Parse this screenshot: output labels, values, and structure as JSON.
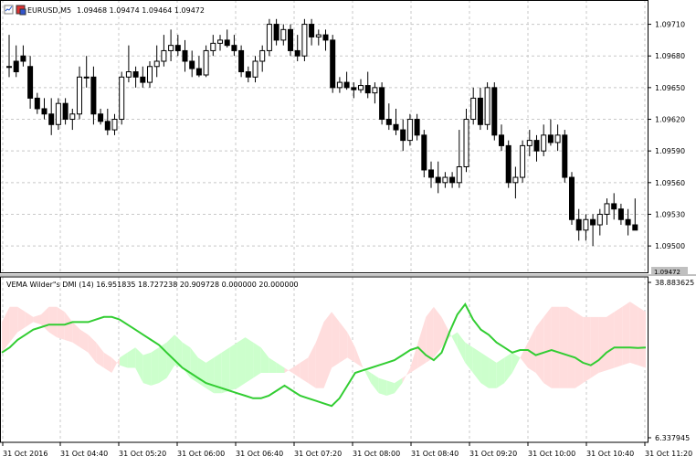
{
  "window": {
    "symbol_label": "EURUSD,M5",
    "ohlc_label": "1.09468 1.09474 1.09464 1.09472",
    "indicator_label": "VEMA Wilder\"s DMI (14) 16.951835 18.727238 20.909728 0.000000 20.000000",
    "current_price": "1.09472"
  },
  "colors": {
    "background": "#ffffff",
    "grid": "#c8c8c8",
    "axis": "#000000",
    "bull_body": "#ffffff",
    "bear_body": "#000000",
    "candle_outline": "#000000",
    "vema_line": "#32cd32",
    "cloud_green": "#ccffcc",
    "cloud_red": "#ffdddd"
  },
  "chart_data": [
    {
      "type": "candlestick",
      "name": "EURUSD,M5",
      "title": "EURUSD,M5",
      "y_ticks": [
        "1.09710",
        "1.09680",
        "1.09650",
        "1.09620",
        "1.09590",
        "1.09560",
        "1.09530",
        "1.09500"
      ],
      "ylim": [
        1.09475,
        1.09733
      ],
      "x_ticks": [
        "31 Oct 2016",
        "31 Oct 04:40",
        "31 Oct 05:20",
        "31 Oct 06:00",
        "31 Oct 06:40",
        "31 Oct 07:20",
        "31 Oct 08:00",
        "31 Oct 08:40",
        "31 Oct 09:20",
        "31 Oct 10:00",
        "31 Oct 10:40",
        "31 Oct 11:20"
      ],
      "grid": true,
      "ohlc": [
        [
          1.0967,
          1.097,
          1.0966,
          1.0967
        ],
        [
          1.09675,
          1.0969,
          1.0966,
          1.09665
        ],
        [
          1.0968,
          1.0969,
          1.0967,
          1.09675
        ],
        [
          1.0967,
          1.0968,
          1.0963,
          1.0964
        ],
        [
          1.0964,
          1.09645,
          1.09625,
          1.0963
        ],
        [
          1.0963,
          1.0964,
          1.0962,
          1.09625
        ],
        [
          1.09625,
          1.0964,
          1.09605,
          1.09615
        ],
        [
          1.09615,
          1.0964,
          1.0961,
          1.09635
        ],
        [
          1.09635,
          1.0964,
          1.09615,
          1.0962
        ],
        [
          1.0962,
          1.0963,
          1.0961,
          1.09625
        ],
        [
          1.09625,
          1.0967,
          1.0962,
          1.0966
        ],
        [
          1.0966,
          1.0968,
          1.0965,
          1.0966
        ],
        [
          1.0966,
          1.0967,
          1.09615,
          1.09625
        ],
        [
          1.09625,
          1.0963,
          1.09615,
          1.09618
        ],
        [
          1.09618,
          1.0963,
          1.09605,
          1.0961
        ],
        [
          1.0961,
          1.09625,
          1.09605,
          1.0962
        ],
        [
          1.0962,
          1.09665,
          1.09615,
          1.0966
        ],
        [
          1.0966,
          1.0969,
          1.09655,
          1.09665
        ],
        [
          1.09665,
          1.0967,
          1.0965,
          1.0966
        ],
        [
          1.0966,
          1.0967,
          1.0965,
          1.09655
        ],
        [
          1.09655,
          1.09675,
          1.0965,
          1.0967
        ],
        [
          1.0967,
          1.0969,
          1.0966,
          1.09675
        ],
        [
          1.09675,
          1.097,
          1.0967,
          1.09685
        ],
        [
          1.09685,
          1.09705,
          1.09675,
          1.0969
        ],
        [
          1.0969,
          1.097,
          1.0968,
          1.09685
        ],
        [
          1.09685,
          1.09695,
          1.09665,
          1.09675
        ],
        [
          1.09675,
          1.09685,
          1.0966,
          1.09668
        ],
        [
          1.09668,
          1.0968,
          1.0966,
          1.09662
        ],
        [
          1.09662,
          1.0969,
          1.0966,
          1.09685
        ],
        [
          1.09685,
          1.097,
          1.0968,
          1.09692
        ],
        [
          1.09692,
          1.097,
          1.09685,
          1.09695
        ],
        [
          1.09695,
          1.09705,
          1.09688,
          1.0969
        ],
        [
          1.0969,
          1.097,
          1.0968,
          1.09685
        ],
        [
          1.09685,
          1.0969,
          1.0966,
          1.09665
        ],
        [
          1.09665,
          1.0967,
          1.09655,
          1.0966
        ],
        [
          1.0966,
          1.0968,
          1.09655,
          1.09675
        ],
        [
          1.09675,
          1.0969,
          1.09665,
          1.09685
        ],
        [
          1.09685,
          1.09715,
          1.0968,
          1.0971
        ],
        [
          1.0971,
          1.09715,
          1.0969,
          1.09695
        ],
        [
          1.09695,
          1.0971,
          1.0969,
          1.09705
        ],
        [
          1.09705,
          1.0971,
          1.0968,
          1.09685
        ],
        [
          1.09685,
          1.097,
          1.09675,
          1.0968
        ],
        [
          1.0968,
          1.09715,
          1.09675,
          1.0971
        ],
        [
          1.0971,
          1.09715,
          1.0969,
          1.09698
        ],
        [
          1.09698,
          1.09705,
          1.0969,
          1.097
        ],
        [
          1.097,
          1.09705,
          1.09685,
          1.09695
        ],
        [
          1.09695,
          1.097,
          1.09645,
          1.0965
        ],
        [
          1.0965,
          1.0966,
          1.09645,
          1.09655
        ],
        [
          1.09655,
          1.09665,
          1.09648,
          1.0965
        ],
        [
          1.0965,
          1.09655,
          1.0964,
          1.09648
        ],
        [
          1.09648,
          1.09658,
          1.09645,
          1.09652
        ],
        [
          1.09652,
          1.09665,
          1.0964,
          1.09645
        ],
        [
          1.09645,
          1.09655,
          1.09635,
          1.0965
        ],
        [
          1.0965,
          1.09655,
          1.09615,
          1.0962
        ],
        [
          1.0962,
          1.09635,
          1.0961,
          1.09615
        ],
        [
          1.09615,
          1.0963,
          1.09605,
          1.0961
        ],
        [
          1.0961,
          1.0962,
          1.0959,
          1.096
        ],
        [
          1.096,
          1.09625,
          1.09595,
          1.0962
        ],
        [
          1.0962,
          1.09625,
          1.096,
          1.09605
        ],
        [
          1.09605,
          1.0961,
          1.09565,
          1.09572
        ],
        [
          1.09572,
          1.0958,
          1.09555,
          1.09565
        ],
        [
          1.09565,
          1.0958,
          1.0955,
          1.0956
        ],
        [
          1.0956,
          1.0957,
          1.09555,
          1.09565
        ],
        [
          1.09565,
          1.0957,
          1.09555,
          1.0956
        ],
        [
          1.0956,
          1.0961,
          1.09555,
          1.09575
        ],
        [
          1.09575,
          1.0963,
          1.0957,
          1.0962
        ],
        [
          1.0962,
          1.0965,
          1.09615,
          1.0964
        ],
        [
          1.0964,
          1.0965,
          1.0961,
          1.09615
        ],
        [
          1.09615,
          1.09655,
          1.0961,
          1.0965
        ],
        [
          1.0965,
          1.09655,
          1.096,
          1.09605
        ],
        [
          1.09605,
          1.09615,
          1.0959,
          1.09595
        ],
        [
          1.09595,
          1.096,
          1.09555,
          1.0956
        ],
        [
          1.0956,
          1.09575,
          1.09545,
          1.09565
        ],
        [
          1.09565,
          1.096,
          1.0956,
          1.09595
        ],
        [
          1.09595,
          1.0961,
          1.09585,
          1.096
        ],
        [
          1.096,
          1.09605,
          1.0958,
          1.0959
        ],
        [
          1.0959,
          1.09615,
          1.09585,
          1.09605
        ],
        [
          1.09605,
          1.0962,
          1.09595,
          1.09598
        ],
        [
          1.09598,
          1.09615,
          1.0959,
          1.09605
        ],
        [
          1.09605,
          1.0961,
          1.0956,
          1.09565
        ],
        [
          1.09565,
          1.0957,
          1.0952,
          1.09525
        ],
        [
          1.09525,
          1.09535,
          1.09505,
          1.09515
        ],
        [
          1.09515,
          1.0953,
          1.09505,
          1.09525
        ],
        [
          1.09525,
          1.0953,
          1.095,
          1.0952
        ],
        [
          1.0952,
          1.09535,
          1.0951,
          1.0953
        ],
        [
          1.0953,
          1.09545,
          1.0952,
          1.0954
        ],
        [
          1.0954,
          1.0955,
          1.09525,
          1.09535
        ],
        [
          1.09535,
          1.0954,
          1.0952,
          1.09525
        ],
        [
          1.09525,
          1.09535,
          1.0951,
          1.0952
        ],
        [
          1.0952,
          1.09545,
          1.09515,
          1.09515
        ]
      ]
    },
    {
      "type": "area",
      "name": "VEMA Wilder\"s DMI (14)",
      "title": "VEMA Wilder\"s DMI (14) 16.951835 18.727238 20.909728 0.000000 20.000000",
      "ylim": [
        6.337945,
        38.883625
      ],
      "y_ticks": [
        "38.883625",
        "6.337945"
      ],
      "grid": true,
      "vema_line": [
        24.0,
        25.0,
        26.5,
        27.5,
        28.5,
        29.0,
        29.5,
        29.5,
        29.5,
        30.0,
        30.0,
        30.0,
        30.5,
        31.0,
        31.0,
        30.5,
        29.5,
        28.5,
        27.5,
        26.5,
        25.5,
        24.0,
        22.5,
        21.0,
        20.0,
        19.0,
        18.0,
        17.5,
        17.0,
        16.5,
        16.0,
        15.5,
        15.0,
        15.0,
        15.5,
        16.5,
        17.5,
        16.5,
        15.5,
        15.0,
        14.5,
        14.0,
        13.5,
        15.0,
        17.5,
        20.0,
        20.5,
        21.0,
        21.5,
        22.0,
        22.5,
        23.5,
        24.5,
        25.0,
        23.5,
        22.5,
        24.0,
        28.0,
        31.5,
        33.5,
        30.5,
        28.5,
        27.5,
        26.0,
        25.0,
        24.0,
        24.5,
        24.5,
        23.5,
        24.0,
        24.5,
        24.0,
        23.5,
        23.0,
        22.0,
        21.5,
        22.5,
        24.0,
        25.0,
        25.0,
        25.0,
        24.9,
        25.0
      ],
      "plus_di": [
        24,
        26,
        28,
        29,
        30,
        29.5,
        28,
        27,
        26.5,
        26,
        25,
        24,
        22,
        21,
        20,
        23,
        24,
        25,
        23.5,
        24,
        25,
        26,
        27.5,
        26,
        25,
        23,
        22,
        23,
        24,
        25,
        26,
        27,
        26,
        25,
        23,
        22,
        21,
        20,
        19,
        18,
        17,
        17,
        21,
        22,
        23,
        22,
        21,
        20,
        19,
        18.5,
        18,
        19,
        20,
        21,
        22,
        23,
        25,
        27,
        28,
        26,
        25,
        24,
        23,
        22,
        23,
        24,
        23,
        21,
        20,
        18,
        17,
        17,
        17,
        17,
        18,
        19,
        20,
        20.5,
        21,
        21.5,
        22,
        21.5,
        21
      ],
      "minus_di": [
        30,
        33,
        33,
        32,
        31,
        31.5,
        33,
        33,
        32,
        30,
        28.5,
        27.5,
        26,
        24,
        23,
        21.5,
        21,
        21,
        18,
        17.5,
        18,
        19,
        21.5,
        21,
        19,
        18,
        17,
        16,
        16,
        16.5,
        17,
        18,
        19,
        20,
        20,
        20,
        20,
        21,
        22,
        23,
        26,
        30,
        32,
        30,
        28,
        25,
        21,
        18,
        16,
        15.5,
        16,
        18,
        21,
        26,
        31,
        33,
        31,
        28,
        25,
        22,
        20,
        18,
        17,
        17,
        18,
        20,
        23,
        26,
        29,
        31,
        33,
        33,
        33,
        32,
        31,
        31,
        31,
        31,
        32,
        33,
        34,
        33,
        32
      ]
    }
  ]
}
